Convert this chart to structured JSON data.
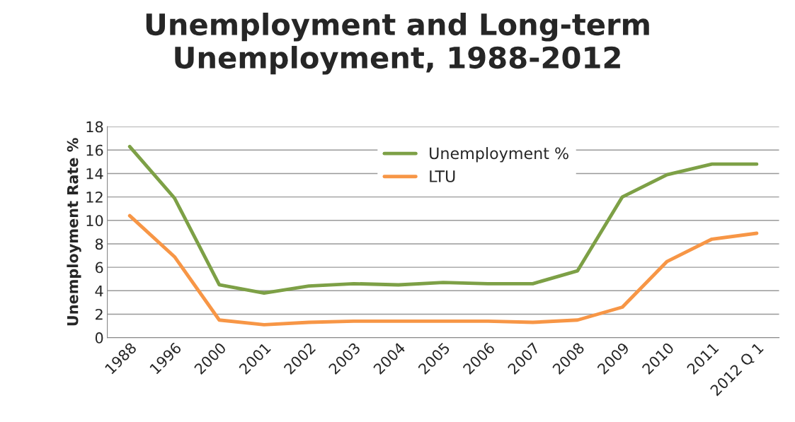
{
  "chart_data": {
    "type": "line",
    "title": "Unemployment and Long-term\nUnemployment, 1988-2012",
    "ylabel": "Unemployment Rate %",
    "categories": [
      "1988",
      "1996",
      "2000",
      "2001",
      "2002",
      "2003",
      "2004",
      "2005",
      "2006",
      "2007",
      "2008",
      "2009",
      "2010",
      "2011",
      "2012 Q 1"
    ],
    "series": [
      {
        "name": "Unemployment %",
        "color": "#7da046",
        "values": [
          16.3,
          11.9,
          4.5,
          3.8,
          4.4,
          4.6,
          4.5,
          4.7,
          4.6,
          4.6,
          5.7,
          12.0,
          13.9,
          14.8,
          14.8
        ]
      },
      {
        "name": "LTU",
        "color": "#f79646",
        "values": [
          10.4,
          6.9,
          1.5,
          1.1,
          1.3,
          1.4,
          1.4,
          1.4,
          1.4,
          1.3,
          1.5,
          2.6,
          6.5,
          8.4,
          8.9
        ]
      }
    ],
    "ylim": [
      0,
      18
    ],
    "yticks": [
      0,
      2,
      4,
      6,
      8,
      10,
      12,
      14,
      16,
      18
    ],
    "grid": "y",
    "legend": "top",
    "marker": "none",
    "line_style": "solid"
  }
}
